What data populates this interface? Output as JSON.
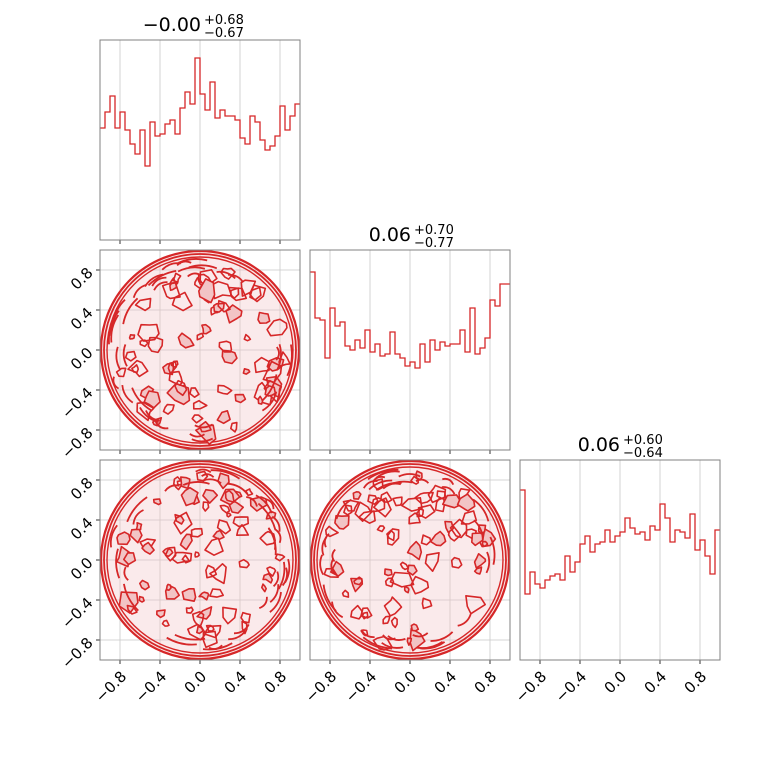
{
  "colors": {
    "series": "#d62728",
    "frame": "#808080",
    "grid": "#c8c8c8",
    "fill": "#f2c4c5"
  },
  "chart_data": {
    "type": "corner",
    "n_params": 3,
    "axis_range": [
      -1,
      1
    ],
    "grid": true,
    "ticks": [
      -0.8,
      -0.4,
      0.0,
      0.4,
      0.8
    ],
    "tick_labels": [
      "−0.8",
      "−0.4",
      "0.0",
      "0.4",
      "0.8"
    ],
    "titles": [
      {
        "median": "−0.00",
        "plus": "+0.68",
        "minus": "−0.67"
      },
      {
        "median": "0.06",
        "plus": "+0.70",
        "minus": "−0.77"
      },
      {
        "median": "0.06",
        "plus": "+0.60",
        "minus": "−0.64"
      }
    ],
    "histograms": [
      {
        "param": 0,
        "bin_edges_range": [
          -1,
          1
        ],
        "n_bins": 40,
        "values": [
          0.56,
          0.64,
          0.72,
          0.56,
          0.64,
          0.55,
          0.48,
          0.43,
          0.55,
          0.37,
          0.59,
          0.52,
          0.53,
          0.58,
          0.6,
          0.53,
          0.66,
          0.74,
          0.68,
          0.91,
          0.73,
          0.65,
          0.79,
          0.61,
          0.65,
          0.62,
          0.62,
          0.6,
          0.51,
          0.48,
          0.62,
          0.59,
          0.5,
          0.45,
          0.47,
          0.52,
          0.67,
          0.55,
          0.62,
          0.68
        ]
      },
      {
        "param": 1,
        "bin_edges_range": [
          -1,
          1
        ],
        "n_bins": 40,
        "values": [
          0.89,
          0.66,
          0.65,
          0.46,
          0.71,
          0.62,
          0.64,
          0.52,
          0.5,
          0.55,
          0.51,
          0.6,
          0.49,
          0.53,
          0.47,
          0.48,
          0.59,
          0.48,
          0.46,
          0.42,
          0.44,
          0.41,
          0.53,
          0.44,
          0.55,
          0.5,
          0.54,
          0.52,
          0.53,
          0.53,
          0.6,
          0.49,
          0.71,
          0.48,
          0.51,
          0.56,
          0.75,
          0.72,
          0.83,
          0.83
        ]
      },
      {
        "param": 2,
        "bin_edges_range": [
          -1,
          1
        ],
        "n_bins": 40,
        "values": [
          0.85,
          0.33,
          0.44,
          0.38,
          0.36,
          0.4,
          0.42,
          0.43,
          0.4,
          0.52,
          0.44,
          0.49,
          0.58,
          0.62,
          0.54,
          0.58,
          0.59,
          0.65,
          0.59,
          0.62,
          0.64,
          0.71,
          0.66,
          0.63,
          0.64,
          0.6,
          0.67,
          0.65,
          0.78,
          0.71,
          0.59,
          0.65,
          0.64,
          0.61,
          0.73,
          0.55,
          0.6,
          0.52,
          0.43,
          0.65
        ]
      }
    ],
    "contour_panels": [
      {
        "x_param": 0,
        "y_param": 1,
        "support": "unit disk",
        "seed": 11
      },
      {
        "x_param": 0,
        "y_param": 2,
        "support": "unit disk",
        "seed": 23
      },
      {
        "x_param": 1,
        "y_param": 2,
        "support": "unit disk",
        "seed": 37
      }
    ]
  }
}
